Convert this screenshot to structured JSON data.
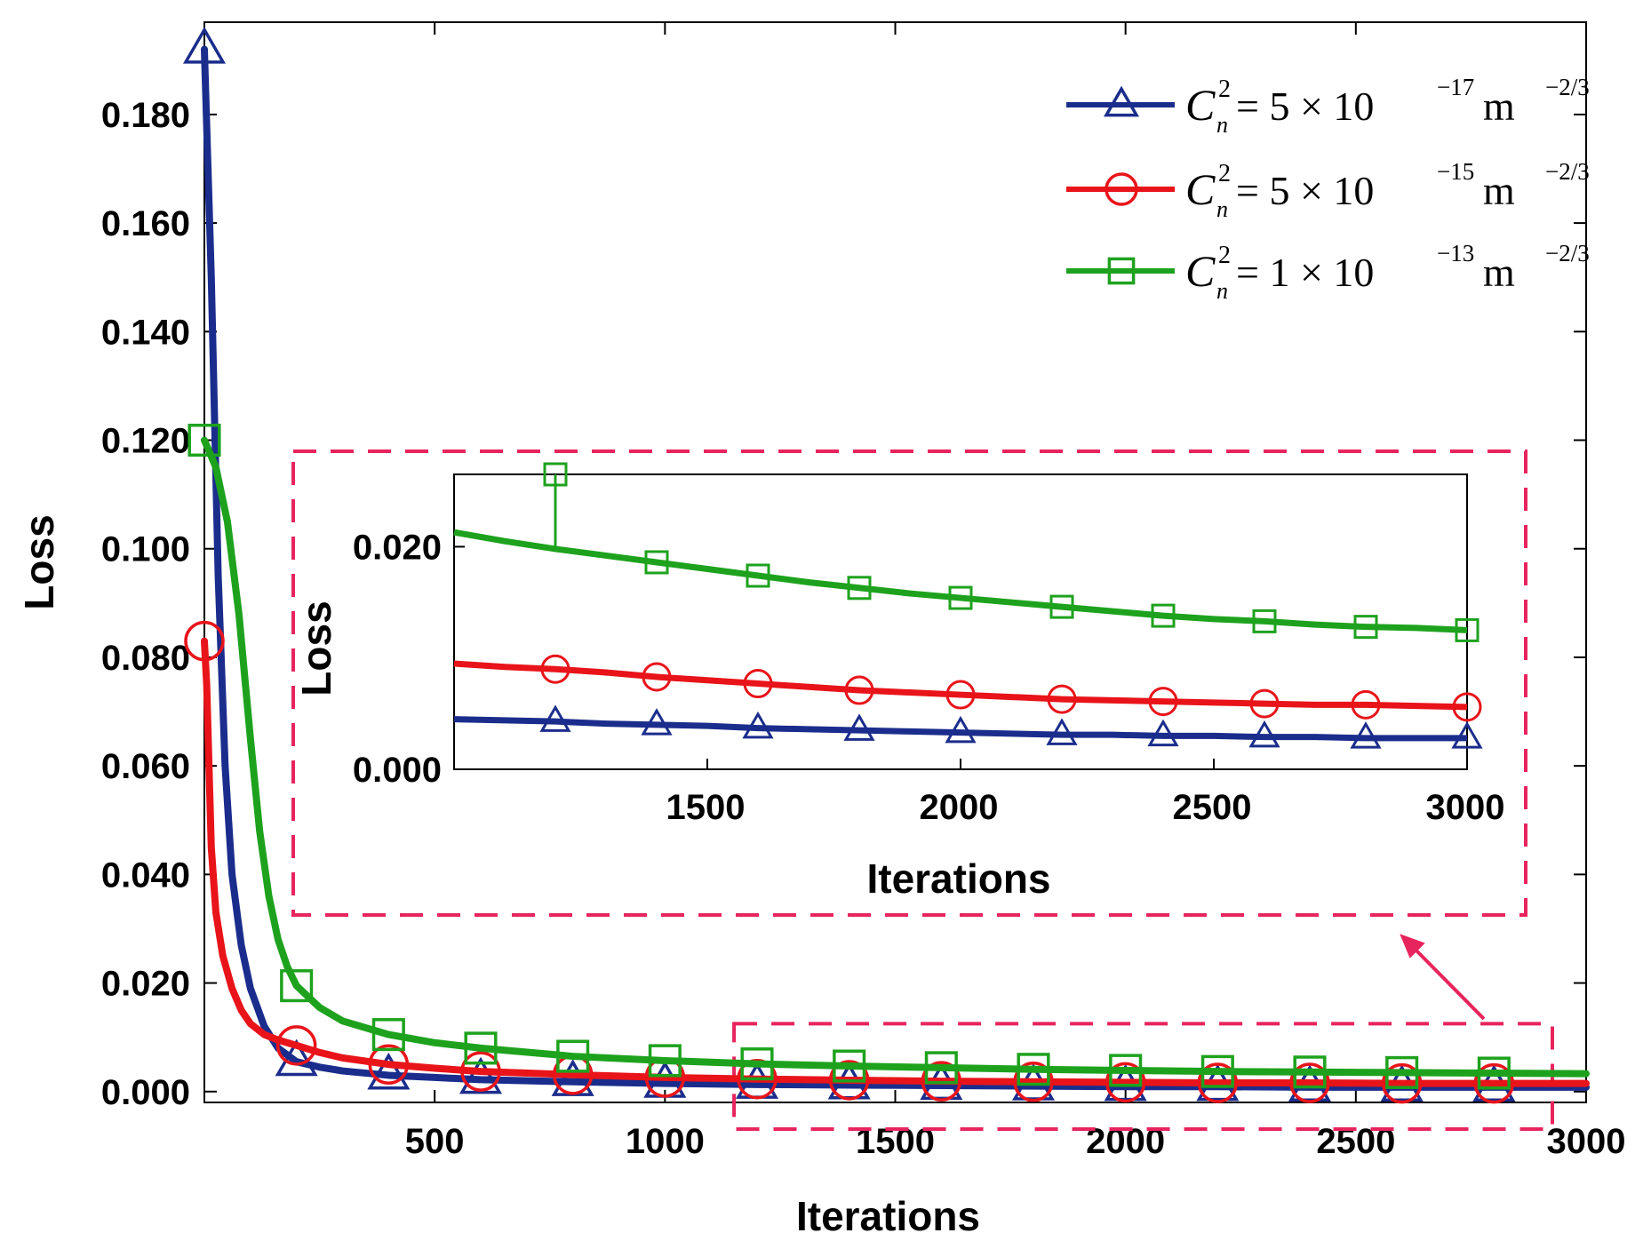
{
  "chart_data": {
    "type": "line",
    "xlabel": "Iterations",
    "ylabel": "Loss",
    "xlim": [
      0,
      3000
    ],
    "ylim": [
      -0.002,
      0.197
    ],
    "xticks": [
      500,
      1000,
      1500,
      2000,
      2500,
      3000
    ],
    "yticks": [
      0.0,
      0.02,
      0.04,
      0.06,
      0.08,
      0.1,
      0.12,
      0.14,
      0.16,
      0.18
    ],
    "xtick_labels": [
      "500",
      "1000",
      "1500",
      "2000",
      "2500",
      "3000"
    ],
    "ytick_labels": [
      "0.000",
      "0.020",
      "0.040",
      "0.060",
      "0.080",
      "0.100",
      "0.120",
      "0.140",
      "0.160",
      "0.180"
    ],
    "series": [
      {
        "name": "C_n^2 = 5×10^-17 m^-2/3",
        "color": "#1b2d8c",
        "marker": "triangle",
        "legend": {
          "lhs": "C",
          "lhs_sub": "n",
          "lhs_sup": "2",
          "eq": " = 5 × 10",
          "exp": "−17",
          "unit": " m",
          "unit_exp": "−2/3"
        },
        "x": [
          0,
          15,
          30,
          45,
          60,
          80,
          100,
          130,
          160,
          200,
          250,
          300,
          400,
          500,
          600,
          800,
          1000,
          1200,
          1400,
          1600,
          1800,
          2000,
          2200,
          2400,
          2600,
          2800,
          3000
        ],
        "y": [
          0.192,
          0.15,
          0.095,
          0.06,
          0.04,
          0.027,
          0.019,
          0.012,
          0.008,
          0.0055,
          0.0045,
          0.0038,
          0.003,
          0.0026,
          0.0022,
          0.0018,
          0.0015,
          0.0013,
          0.0012,
          0.0011,
          0.001,
          0.0009,
          0.0009,
          0.0008,
          0.0008,
          0.0008,
          0.0008
        ],
        "markers_x": [
          0,
          200,
          400,
          600,
          800,
          1000,
          1200,
          1400,
          1600,
          1800,
          2000,
          2200,
          2400,
          2600,
          2800
        ],
        "inset_x": [
          1000,
          1100,
          1200,
          1300,
          1400,
          1500,
          1600,
          1700,
          1800,
          1900,
          2000,
          2100,
          2200,
          2300,
          2400,
          2500,
          2600,
          2700,
          2800,
          2900,
          3000
        ],
        "inset_y": [
          0.0045,
          0.0044,
          0.0043,
          0.0041,
          0.004,
          0.0039,
          0.0037,
          0.0036,
          0.0035,
          0.0034,
          0.0033,
          0.0032,
          0.0031,
          0.0031,
          0.003,
          0.003,
          0.0029,
          0.0029,
          0.0028,
          0.0028,
          0.0028
        ],
        "inset_markers_x": [
          1200,
          1400,
          1600,
          1800,
          2000,
          2200,
          2400,
          2600,
          2800,
          3000
        ]
      },
      {
        "name": "C_n^2 = 5×10^-15 m^-2/3",
        "color": "#e8141a",
        "marker": "circle",
        "legend": {
          "lhs": "C",
          "lhs_sub": "n",
          "lhs_sup": "2",
          "eq": " = 5 × 10",
          "exp": "−15",
          "unit": " m",
          "unit_exp": "−2/3"
        },
        "x": [
          0,
          5,
          10,
          15,
          25,
          40,
          60,
          80,
          100,
          130,
          160,
          200,
          250,
          300,
          400,
          500,
          600,
          800,
          1000,
          1200,
          1400,
          1600,
          1800,
          2000,
          2200,
          2400,
          2600,
          2800,
          3000
        ],
        "y": [
          0.083,
          0.075,
          0.06,
          0.045,
          0.033,
          0.025,
          0.019,
          0.015,
          0.0125,
          0.0105,
          0.0095,
          0.0085,
          0.0072,
          0.0062,
          0.005,
          0.0043,
          0.0037,
          0.0031,
          0.0026,
          0.0023,
          0.0021,
          0.0019,
          0.0018,
          0.0017,
          0.0016,
          0.0016,
          0.0015,
          0.0015,
          0.0015
        ],
        "markers_x": [
          0,
          200,
          400,
          600,
          800,
          1000,
          1200,
          1400,
          1600,
          1800,
          2000,
          2200,
          2400,
          2600,
          2800
        ],
        "inset_x": [
          1000,
          1100,
          1200,
          1300,
          1400,
          1500,
          1600,
          1700,
          1800,
          1900,
          2000,
          2100,
          2200,
          2300,
          2400,
          2500,
          2600,
          2700,
          2800,
          2900,
          3000
        ],
        "inset_y": [
          0.0095,
          0.0092,
          0.009,
          0.0087,
          0.0083,
          0.008,
          0.0077,
          0.0074,
          0.0071,
          0.0069,
          0.0067,
          0.0065,
          0.0063,
          0.0062,
          0.0061,
          0.006,
          0.0059,
          0.0058,
          0.0058,
          0.0057,
          0.0056
        ],
        "inset_markers_x": [
          1200,
          1400,
          1600,
          1800,
          2000,
          2200,
          2400,
          2600,
          2800,
          3000
        ]
      },
      {
        "name": "C_n^2 = 1×10^-13 m^-2/3",
        "color": "#1ea21e",
        "marker": "square",
        "legend": {
          "lhs": "C",
          "lhs_sub": "n",
          "lhs_sup": "2",
          "eq": " = 1 × 10",
          "exp": "−13",
          "unit": " m",
          "unit_exp": "−2/3"
        },
        "x": [
          0,
          25,
          50,
          75,
          100,
          120,
          140,
          160,
          180,
          200,
          250,
          300,
          400,
          500,
          600,
          800,
          1000,
          1200,
          1400,
          1600,
          1800,
          2000,
          2200,
          2400,
          2600,
          2800,
          3000
        ],
        "y": [
          0.12,
          0.115,
          0.105,
          0.088,
          0.065,
          0.048,
          0.036,
          0.028,
          0.023,
          0.0195,
          0.0155,
          0.013,
          0.0105,
          0.009,
          0.008,
          0.0065,
          0.0057,
          0.0051,
          0.0047,
          0.0044,
          0.0041,
          0.0039,
          0.0037,
          0.0036,
          0.0035,
          0.0034,
          0.0033
        ],
        "markers_x": [
          0,
          200,
          400,
          600,
          800,
          1000,
          1200,
          1400,
          1600,
          1800,
          2000,
          2200,
          2400,
          2600,
          2800
        ],
        "inset_x": [
          1000,
          1100,
          1200,
          1300,
          1400,
          1500,
          1600,
          1700,
          1800,
          1900,
          2000,
          2100,
          2200,
          2300,
          2400,
          2500,
          2600,
          2700,
          2800,
          2900,
          3000
        ],
        "inset_y": [
          0.0213,
          0.0205,
          0.0198,
          0.0192,
          0.0186,
          0.018,
          0.0174,
          0.0168,
          0.0163,
          0.0158,
          0.0154,
          0.015,
          0.0146,
          0.0142,
          0.0138,
          0.0135,
          0.0133,
          0.013,
          0.0128,
          0.0127,
          0.0125
        ],
        "inset_markers_x": [
          1200,
          1400,
          1600,
          1800,
          2000,
          2200,
          2400,
          2600,
          2800,
          3000
        ],
        "inset_spike": {
          "x": 1200,
          "y": 0.0265
        }
      }
    ],
    "inset": {
      "xlabel": "Iterations",
      "ylabel": "Loss",
      "xlim": [
        1000,
        3000
      ],
      "ylim": [
        0.0,
        0.0265
      ],
      "xticks": [
        1500,
        2000,
        2500,
        3000
      ],
      "yticks": [
        0.0,
        0.02
      ],
      "xtick_labels": [
        "1500",
        "2000",
        "2500",
        "3000"
      ],
      "ytick_labels": [
        "0.000",
        "0.020"
      ],
      "zoom_region": {
        "x": [
          1150,
          3000
        ],
        "y": [
          -0.002,
          0.0125
        ]
      }
    },
    "legend_position": "top-right",
    "highlight_color": "#e8245e",
    "grid": false
  }
}
